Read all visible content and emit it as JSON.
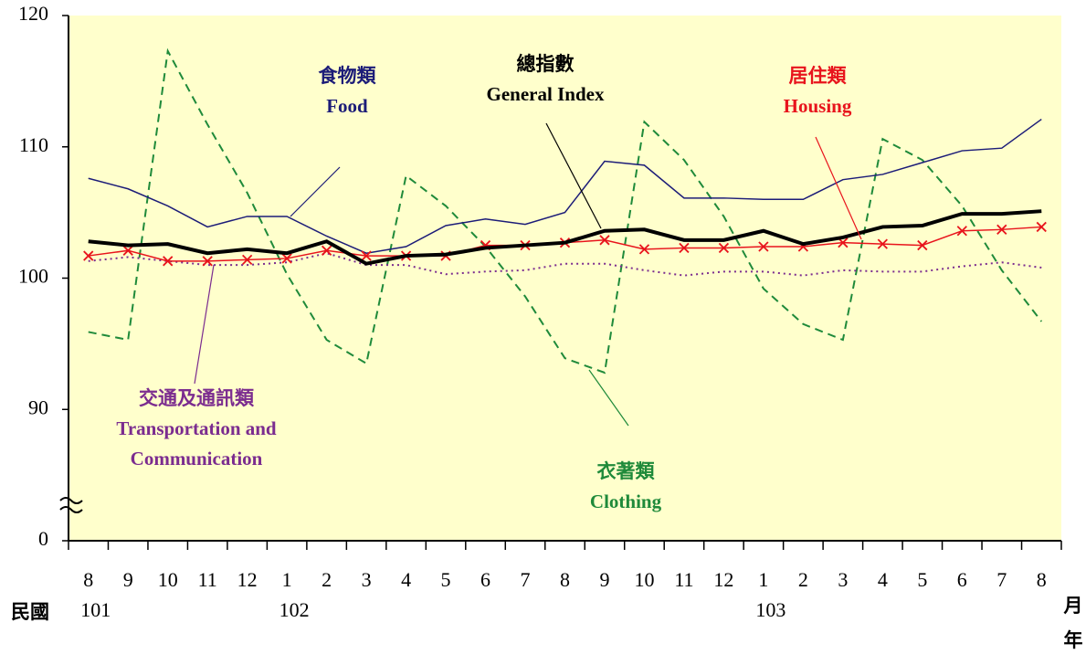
{
  "chart_data": {
    "type": "line",
    "categories": [
      "8",
      "9",
      "10",
      "11",
      "12",
      "1",
      "2",
      "3",
      "4",
      "5",
      "6",
      "7",
      "8",
      "9",
      "10",
      "11",
      "12",
      "1",
      "2",
      "3",
      "4",
      "5",
      "6",
      "7",
      "8"
    ],
    "years": [
      "101",
      null,
      null,
      null,
      null,
      "102",
      null,
      null,
      null,
      null,
      null,
      null,
      null,
      null,
      null,
      null,
      null,
      "103",
      null,
      null,
      null,
      null,
      null,
      null,
      null
    ],
    "x_label_left": "民國",
    "x_label_right": [
      "月",
      "年"
    ],
    "ylim": [
      80,
      120
    ],
    "yticks": [
      0,
      90,
      100,
      110,
      120
    ],
    "axis_break": true,
    "background": "#ffffcc",
    "series": [
      {
        "label": [
          "食物類",
          "Food"
        ],
        "color": "#1c1c78",
        "style": "solid",
        "width": 1.5,
        "values": [
          107.6,
          106.8,
          105.5,
          103.9,
          104.7,
          104.7,
          103.2,
          101.9,
          102.4,
          104.0,
          104.5,
          104.1,
          105.0,
          108.9,
          108.6,
          106.1,
          106.1,
          106.0,
          106.0,
          107.5,
          107.9,
          108.8,
          109.7,
          109.9,
          112.1
        ]
      },
      {
        "label": [
          "總指數",
          "General Index"
        ],
        "color": "#000000",
        "style": "solid",
        "width": 4,
        "values": [
          102.8,
          102.5,
          102.6,
          101.9,
          102.2,
          101.9,
          102.8,
          101.1,
          101.7,
          101.8,
          102.3,
          102.5,
          102.7,
          103.6,
          103.7,
          102.9,
          102.9,
          103.6,
          102.6,
          103.1,
          103.9,
          104.0,
          104.9,
          104.9,
          105.1
        ]
      },
      {
        "label": [
          "居住類",
          "Housing"
        ],
        "color": "#e8141c",
        "style": "solid",
        "width": 1.5,
        "marker": "x",
        "values": [
          101.7,
          102.1,
          101.3,
          101.3,
          101.4,
          101.5,
          102.1,
          101.7,
          101.7,
          101.7,
          102.5,
          102.5,
          102.7,
          102.9,
          102.2,
          102.3,
          102.3,
          102.4,
          102.4,
          102.7,
          102.6,
          102.5,
          103.6,
          103.7,
          103.9
        ]
      },
      {
        "label": [
          "交通及通訊類",
          "Transportation and",
          "Communication"
        ],
        "color": "#7b2c8f",
        "style": "dotted",
        "width": 2,
        "values": [
          101.3,
          101.6,
          101.3,
          101.0,
          101.0,
          101.2,
          101.9,
          101.0,
          101.0,
          100.3,
          100.5,
          100.6,
          101.1,
          101.1,
          100.6,
          100.2,
          100.5,
          100.5,
          100.2,
          100.6,
          100.5,
          100.5,
          100.9,
          101.2,
          100.8
        ]
      },
      {
        "label": [
          "衣著類",
          "Clothing"
        ],
        "color": "#1f8a3a",
        "style": "dashed",
        "width": 2,
        "values": [
          95.9,
          95.3,
          117.3,
          111.7,
          106.5,
          100.3,
          95.3,
          93.5,
          107.8,
          105.5,
          102.4,
          98.6,
          93.9,
          92.8,
          111.9,
          109.0,
          104.7,
          99.2,
          96.5,
          95.3,
          110.6,
          109.0,
          105.5,
          100.6,
          96.7
        ]
      }
    ]
  }
}
